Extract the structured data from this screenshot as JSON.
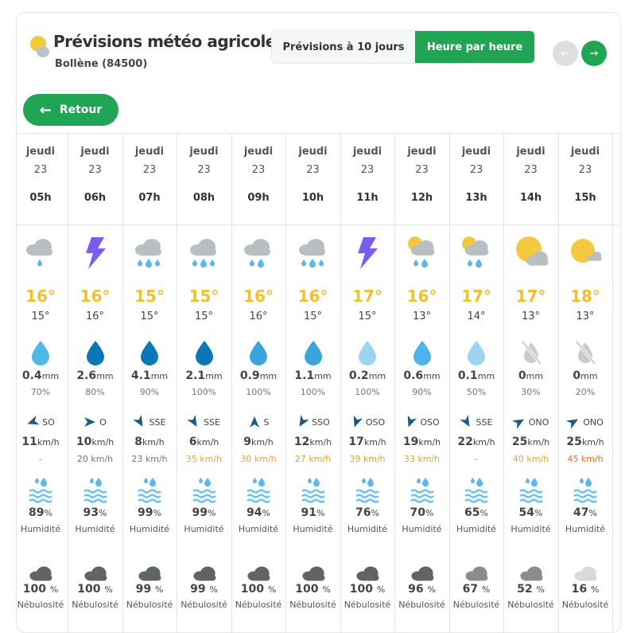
{
  "header": {
    "title": "Prévisions météo agricole",
    "location": "Bollène (84500)",
    "icon": "sun-cloud-icon"
  },
  "toggle": {
    "ten_days": "Prévisions à 10 jours",
    "hourly": "Heure par heure"
  },
  "nav": {
    "prev": "←",
    "next": "→"
  },
  "back": {
    "label": "Retour",
    "arrow": "←"
  },
  "labels": {
    "humidity": "Humidité",
    "cloud": "Nébulosité",
    "mm": "mm",
    "kmh": "km/h",
    "pct": "%"
  },
  "colors": {
    "green": "#22a455",
    "temp_max": "#f0c030",
    "gust_orange": "#e8a13a",
    "gust_red": "#e0702a"
  },
  "hours": [
    {
      "day": "jeudi",
      "date": "23",
      "hour": "05h",
      "weather": "cloud-rain-light",
      "tmax": "16°",
      "tmin": "15°",
      "rain": "0.4",
      "drop": "#4fb8e8",
      "prob": "70%",
      "dir": "SO",
      "speed": "11",
      "gust": "-",
      "gust_level": "none",
      "humidity": "89",
      "cloud": "100",
      "cloud_color": "#5f6467"
    },
    {
      "day": "jeudi",
      "date": "23",
      "hour": "06h",
      "weather": "lightning",
      "tmax": "16°",
      "tmin": "16°",
      "rain": "2.6",
      "drop": "#0a78b8",
      "prob": "80%",
      "dir": "O",
      "speed": "10",
      "gust": "20 km/h",
      "gust_level": "normal",
      "humidity": "93",
      "cloud": "100",
      "cloud_color": "#5f6467"
    },
    {
      "day": "jeudi",
      "date": "23",
      "hour": "07h",
      "weather": "cloud-rain",
      "tmax": "15°",
      "tmin": "15°",
      "rain": "4.1",
      "drop": "#0a78b8",
      "prob": "90%",
      "dir": "SSE",
      "speed": "8",
      "gust": "23 km/h",
      "gust_level": "normal",
      "humidity": "99",
      "cloud": "99",
      "cloud_color": "#5f6467"
    },
    {
      "day": "jeudi",
      "date": "23",
      "hour": "08h",
      "weather": "cloud-rain",
      "tmax": "15°",
      "tmin": "15°",
      "rain": "2.1",
      "drop": "#0a78b8",
      "prob": "100%",
      "dir": "SSE",
      "speed": "6",
      "gust": "35 km/h",
      "gust_level": "orange",
      "humidity": "99",
      "cloud": "99",
      "cloud_color": "#5f6467"
    },
    {
      "day": "jeudi",
      "date": "23",
      "hour": "09h",
      "weather": "cloud-rain-two",
      "tmax": "16°",
      "tmin": "16°",
      "rain": "0.9",
      "drop": "#3aa4dc",
      "prob": "100%",
      "dir": "S",
      "speed": "9",
      "gust": "30 km/h",
      "gust_level": "orange",
      "humidity": "94",
      "cloud": "100",
      "cloud_color": "#5f6467"
    },
    {
      "day": "jeudi",
      "date": "23",
      "hour": "10h",
      "weather": "cloud-rain",
      "tmax": "16°",
      "tmin": "15°",
      "rain": "1.1",
      "drop": "#3aa4dc",
      "prob": "100%",
      "dir": "SSO",
      "speed": "12",
      "gust": "27 km/h",
      "gust_level": "orange",
      "humidity": "91",
      "cloud": "100",
      "cloud_color": "#5f6467"
    },
    {
      "day": "jeudi",
      "date": "23",
      "hour": "11h",
      "weather": "lightning",
      "tmax": "17°",
      "tmin": "15°",
      "rain": "0.2",
      "drop": "#9dd4f0",
      "prob": "100%",
      "dir": "OSO",
      "speed": "17",
      "gust": "39 km/h",
      "gust_level": "orange",
      "humidity": "76",
      "cloud": "100",
      "cloud_color": "#5f6467"
    },
    {
      "day": "jeudi",
      "date": "23",
      "hour": "12h",
      "weather": "sun-cloud-rain",
      "tmax": "16°",
      "tmin": "13°",
      "rain": "0.6",
      "drop": "#4cb4ec",
      "prob": "90%",
      "dir": "OSO",
      "speed": "19",
      "gust": "33 km/h",
      "gust_level": "orange",
      "humidity": "70",
      "cloud": "96",
      "cloud_color": "#5f6467"
    },
    {
      "day": "jeudi",
      "date": "23",
      "hour": "13h",
      "weather": "sun-cloud-rain",
      "tmax": "17°",
      "tmin": "14°",
      "rain": "0.1",
      "drop": "#9dd4f0",
      "prob": "50%",
      "dir": "SSE",
      "speed": "22",
      "gust": "-",
      "gust_level": "none",
      "humidity": "65",
      "cloud": "67",
      "cloud_color": "#8a8d8f"
    },
    {
      "day": "jeudi",
      "date": "23",
      "hour": "14h",
      "weather": "sun-cloud",
      "tmax": "17°",
      "tmin": "13°",
      "rain": "0",
      "drop": "none",
      "prob": "30%",
      "dir": "ONO",
      "speed": "25",
      "gust": "40 km/h",
      "gust_level": "orange",
      "humidity": "54",
      "cloud": "52",
      "cloud_color": "#8a8d8f"
    },
    {
      "day": "jeudi",
      "date": "23",
      "hour": "15h",
      "weather": "sun-small-cloud",
      "tmax": "18°",
      "tmin": "13°",
      "rain": "0",
      "drop": "none",
      "prob": "20%",
      "dir": "ONO",
      "speed": "25",
      "gust": "45 km/h",
      "gust_level": "red",
      "humidity": "47",
      "cloud": "16",
      "cloud_color": "#d8dadb"
    }
  ]
}
